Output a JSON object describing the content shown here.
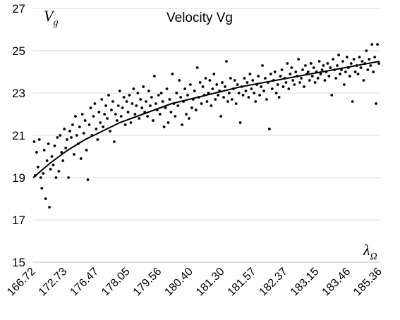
{
  "chart_data": {
    "type": "scatter",
    "title": "Velocity Vg",
    "ylabel": {
      "symbol": "V",
      "subscript": "g"
    },
    "xlabel": {
      "symbol": "λ",
      "subscript": "Ω"
    },
    "ylim": [
      15,
      27
    ],
    "yticks": [
      15,
      17,
      19,
      21,
      23,
      25,
      27
    ],
    "x_tick_labels": [
      "166.72",
      "172.73",
      "176.47",
      "178.05",
      "179.56",
      "180.40",
      "181.30",
      "181.57",
      "182.37",
      "183.15",
      "183.46",
      "185.36"
    ],
    "grid": "horizontal",
    "legend": "none",
    "colors": {
      "points": "#000000",
      "trend": "#000000",
      "grid": "#d9d9d9"
    },
    "trend_line": {
      "description": "smooth fitted curve",
      "points": [
        [
          0,
          19.0
        ],
        [
          0.05,
          19.7
        ],
        [
          0.1,
          20.3
        ],
        [
          0.15,
          20.8
        ],
        [
          0.2,
          21.2
        ],
        [
          0.25,
          21.6
        ],
        [
          0.3,
          21.9
        ],
        [
          0.35,
          22.2
        ],
        [
          0.4,
          22.5
        ],
        [
          0.45,
          22.7
        ],
        [
          0.5,
          22.9
        ],
        [
          0.55,
          23.1
        ],
        [
          0.6,
          23.3
        ],
        [
          0.65,
          23.45
        ],
        [
          0.7,
          23.6
        ],
        [
          0.75,
          23.75
        ],
        [
          0.8,
          23.9
        ],
        [
          0.85,
          24.05
        ],
        [
          0.9,
          24.2
        ],
        [
          0.95,
          24.35
        ],
        [
          1.0,
          24.5
        ]
      ]
    },
    "series": [
      {
        "values": [
          [
            0.003,
            20.7
          ],
          [
            0.006,
            19.1
          ],
          [
            0.01,
            20.2
          ],
          [
            0.014,
            19.5
          ],
          [
            0.018,
            20.8
          ],
          [
            0.022,
            19.0
          ],
          [
            0.025,
            18.5
          ],
          [
            0.029,
            19.2
          ],
          [
            0.032,
            20.3
          ],
          [
            0.036,
            18.0
          ],
          [
            0.04,
            19.8
          ],
          [
            0.044,
            20.6
          ],
          [
            0.047,
            17.6
          ],
          [
            0.05,
            19.4
          ],
          [
            0.054,
            20.0
          ],
          [
            0.058,
            19.6
          ],
          [
            0.062,
            20.5
          ],
          [
            0.066,
            19.0
          ],
          [
            0.07,
            20.9
          ],
          [
            0.074,
            19.3
          ],
          [
            0.078,
            21.0
          ],
          [
            0.082,
            20.2
          ],
          [
            0.086,
            19.8
          ],
          [
            0.09,
            21.3
          ],
          [
            0.094,
            20.4
          ],
          [
            0.098,
            20.8
          ],
          [
            0.102,
            19.0
          ],
          [
            0.106,
            21.2
          ],
          [
            0.11,
            20.9
          ],
          [
            0.114,
            21.5
          ],
          [
            0.118,
            20.1
          ],
          [
            0.122,
            21.9
          ],
          [
            0.126,
            21.0
          ],
          [
            0.13,
            20.6
          ],
          [
            0.134,
            21.4
          ],
          [
            0.138,
            19.9
          ],
          [
            0.142,
            22.0
          ],
          [
            0.146,
            21.1
          ],
          [
            0.15,
            21.7
          ],
          [
            0.154,
            20.3
          ],
          [
            0.158,
            18.9
          ],
          [
            0.162,
            21.5
          ],
          [
            0.166,
            22.3
          ],
          [
            0.17,
            21.0
          ],
          [
            0.174,
            21.9
          ],
          [
            0.178,
            22.5
          ],
          [
            0.182,
            21.3
          ],
          [
            0.186,
            20.8
          ],
          [
            0.19,
            22.1
          ],
          [
            0.194,
            21.6
          ],
          [
            0.198,
            22.7
          ],
          [
            0.202,
            21.4
          ],
          [
            0.206,
            22.0
          ],
          [
            0.21,
            22.4
          ],
          [
            0.214,
            21.8
          ],
          [
            0.218,
            22.9
          ],
          [
            0.222,
            21.2
          ],
          [
            0.226,
            22.2
          ],
          [
            0.23,
            22.6
          ],
          [
            0.234,
            20.7
          ],
          [
            0.238,
            22.0
          ],
          [
            0.242,
            21.7
          ],
          [
            0.246,
            22.4
          ],
          [
            0.25,
            23.1
          ],
          [
            0.254,
            21.9
          ],
          [
            0.258,
            22.3
          ],
          [
            0.262,
            22.8
          ],
          [
            0.266,
            21.5
          ],
          [
            0.27,
            22.6
          ],
          [
            0.274,
            22.1
          ],
          [
            0.278,
            22.9
          ],
          [
            0.282,
            21.6
          ],
          [
            0.286,
            22.5
          ],
          [
            0.29,
            23.2
          ],
          [
            0.294,
            22.0
          ],
          [
            0.298,
            22.4
          ],
          [
            0.302,
            23.0
          ],
          [
            0.306,
            21.8
          ],
          [
            0.31,
            22.7
          ],
          [
            0.314,
            22.3
          ],
          [
            0.318,
            23.3
          ],
          [
            0.322,
            22.1
          ],
          [
            0.326,
            22.6
          ],
          [
            0.33,
            21.9
          ],
          [
            0.334,
            23.1
          ],
          [
            0.338,
            22.4
          ],
          [
            0.342,
            22.8
          ],
          [
            0.346,
            21.7
          ],
          [
            0.35,
            23.8
          ],
          [
            0.354,
            22.5
          ],
          [
            0.358,
            22.2
          ],
          [
            0.362,
            22.9
          ],
          [
            0.366,
            22.0
          ],
          [
            0.37,
            23.0
          ],
          [
            0.374,
            22.6
          ],
          [
            0.378,
            21.4
          ],
          [
            0.382,
            22.3
          ],
          [
            0.386,
            23.2
          ],
          [
            0.39,
            21.6
          ],
          [
            0.394,
            22.7
          ],
          [
            0.398,
            22.1
          ],
          [
            0.402,
            23.9
          ],
          [
            0.406,
            22.5
          ],
          [
            0.41,
            21.9
          ],
          [
            0.414,
            23.0
          ],
          [
            0.418,
            22.4
          ],
          [
            0.422,
            23.6
          ],
          [
            0.426,
            22.8
          ],
          [
            0.43,
            21.5
          ],
          [
            0.434,
            22.6
          ],
          [
            0.438,
            23.2
          ],
          [
            0.442,
            22.0
          ],
          [
            0.446,
            22.9
          ],
          [
            0.45,
            21.8
          ],
          [
            0.454,
            23.4
          ],
          [
            0.458,
            22.3
          ],
          [
            0.462,
            22.7
          ],
          [
            0.466,
            23.1
          ],
          [
            0.47,
            22.2
          ],
          [
            0.474,
            24.2
          ],
          [
            0.478,
            22.8
          ],
          [
            0.482,
            23.5
          ],
          [
            0.486,
            22.5
          ],
          [
            0.49,
            23.3
          ],
          [
            0.494,
            22.9
          ],
          [
            0.498,
            23.7
          ],
          [
            0.502,
            22.6
          ],
          [
            0.506,
            23.0
          ],
          [
            0.51,
            23.6
          ],
          [
            0.514,
            22.4
          ],
          [
            0.518,
            23.2
          ],
          [
            0.522,
            23.9
          ],
          [
            0.526,
            22.7
          ],
          [
            0.53,
            23.4
          ],
          [
            0.534,
            22.9
          ],
          [
            0.538,
            23.1
          ],
          [
            0.542,
            21.9
          ],
          [
            0.546,
            23.5
          ],
          [
            0.55,
            22.8
          ],
          [
            0.554,
            23.3
          ],
          [
            0.558,
            24.5
          ],
          [
            0.562,
            22.6
          ],
          [
            0.566,
            23.0
          ],
          [
            0.57,
            23.7
          ],
          [
            0.574,
            22.7
          ],
          [
            0.578,
            23.2
          ],
          [
            0.582,
            23.6
          ],
          [
            0.586,
            22.5
          ],
          [
            0.59,
            23.4
          ],
          [
            0.594,
            23.0
          ],
          [
            0.598,
            21.6
          ],
          [
            0.602,
            23.3
          ],
          [
            0.606,
            22.9
          ],
          [
            0.61,
            23.7
          ],
          [
            0.614,
            23.1
          ],
          [
            0.618,
            23.5
          ],
          [
            0.622,
            22.8
          ],
          [
            0.626,
            23.9
          ],
          [
            0.63,
            23.2
          ],
          [
            0.634,
            23.6
          ],
          [
            0.638,
            23.0
          ],
          [
            0.642,
            22.6
          ],
          [
            0.646,
            23.4
          ],
          [
            0.65,
            23.8
          ],
          [
            0.654,
            22.9
          ],
          [
            0.658,
            23.3
          ],
          [
            0.662,
            24.3
          ],
          [
            0.666,
            23.1
          ],
          [
            0.67,
            23.7
          ],
          [
            0.674,
            22.7
          ],
          [
            0.678,
            23.5
          ],
          [
            0.682,
            21.3
          ],
          [
            0.686,
            23.9
          ],
          [
            0.69,
            23.2
          ],
          [
            0.694,
            23.6
          ],
          [
            0.698,
            24.0
          ],
          [
            0.702,
            23.0
          ],
          [
            0.706,
            23.4
          ],
          [
            0.71,
            22.8
          ],
          [
            0.714,
            23.8
          ],
          [
            0.718,
            24.1
          ],
          [
            0.722,
            23.3
          ],
          [
            0.726,
            23.7
          ],
          [
            0.73,
            23.5
          ],
          [
            0.734,
            24.4
          ],
          [
            0.738,
            23.2
          ],
          [
            0.742,
            23.9
          ],
          [
            0.746,
            24.2
          ],
          [
            0.75,
            23.6
          ],
          [
            0.754,
            23.4
          ],
          [
            0.758,
            24.0
          ],
          [
            0.762,
            23.8
          ],
          [
            0.766,
            24.6
          ],
          [
            0.77,
            23.5
          ],
          [
            0.774,
            23.7
          ],
          [
            0.778,
            24.1
          ],
          [
            0.782,
            23.3
          ],
          [
            0.786,
            24.3
          ],
          [
            0.79,
            23.9
          ],
          [
            0.794,
            24.0
          ],
          [
            0.798,
            23.6
          ],
          [
            0.802,
            24.4
          ],
          [
            0.806,
            23.8
          ],
          [
            0.81,
            24.2
          ],
          [
            0.814,
            23.5
          ],
          [
            0.818,
            24.0
          ],
          [
            0.822,
            23.7
          ],
          [
            0.826,
            24.5
          ],
          [
            0.83,
            23.9
          ],
          [
            0.834,
            24.1
          ],
          [
            0.838,
            24.3
          ],
          [
            0.842,
            23.6
          ],
          [
            0.846,
            24.0
          ],
          [
            0.85,
            24.4
          ],
          [
            0.854,
            23.8
          ],
          [
            0.858,
            24.2
          ],
          [
            0.862,
            22.9
          ],
          [
            0.866,
            24.6
          ],
          [
            0.87,
            24.1
          ],
          [
            0.874,
            23.7
          ],
          [
            0.878,
            24.3
          ],
          [
            0.882,
            24.8
          ],
          [
            0.886,
            23.9
          ],
          [
            0.89,
            24.1
          ],
          [
            0.894,
            24.5
          ],
          [
            0.898,
            23.4
          ],
          [
            0.902,
            24.0
          ],
          [
            0.906,
            24.7
          ],
          [
            0.91,
            24.2
          ],
          [
            0.914,
            23.8
          ],
          [
            0.918,
            24.4
          ],
          [
            0.922,
            22.6
          ],
          [
            0.926,
            24.6
          ],
          [
            0.93,
            24.0
          ],
          [
            0.934,
            24.3
          ],
          [
            0.938,
            23.9
          ],
          [
            0.942,
            24.7
          ],
          [
            0.946,
            24.2
          ],
          [
            0.95,
            24.5
          ],
          [
            0.954,
            23.6
          ],
          [
            0.958,
            24.4
          ],
          [
            0.962,
            25.0
          ],
          [
            0.966,
            24.1
          ],
          [
            0.97,
            24.6
          ],
          [
            0.974,
            24.3
          ],
          [
            0.978,
            25.3
          ],
          [
            0.982,
            24.0
          ],
          [
            0.986,
            24.7
          ],
          [
            0.99,
            22.5
          ],
          [
            0.994,
            25.3
          ],
          [
            0.998,
            24.4
          ]
        ]
      }
    ]
  }
}
